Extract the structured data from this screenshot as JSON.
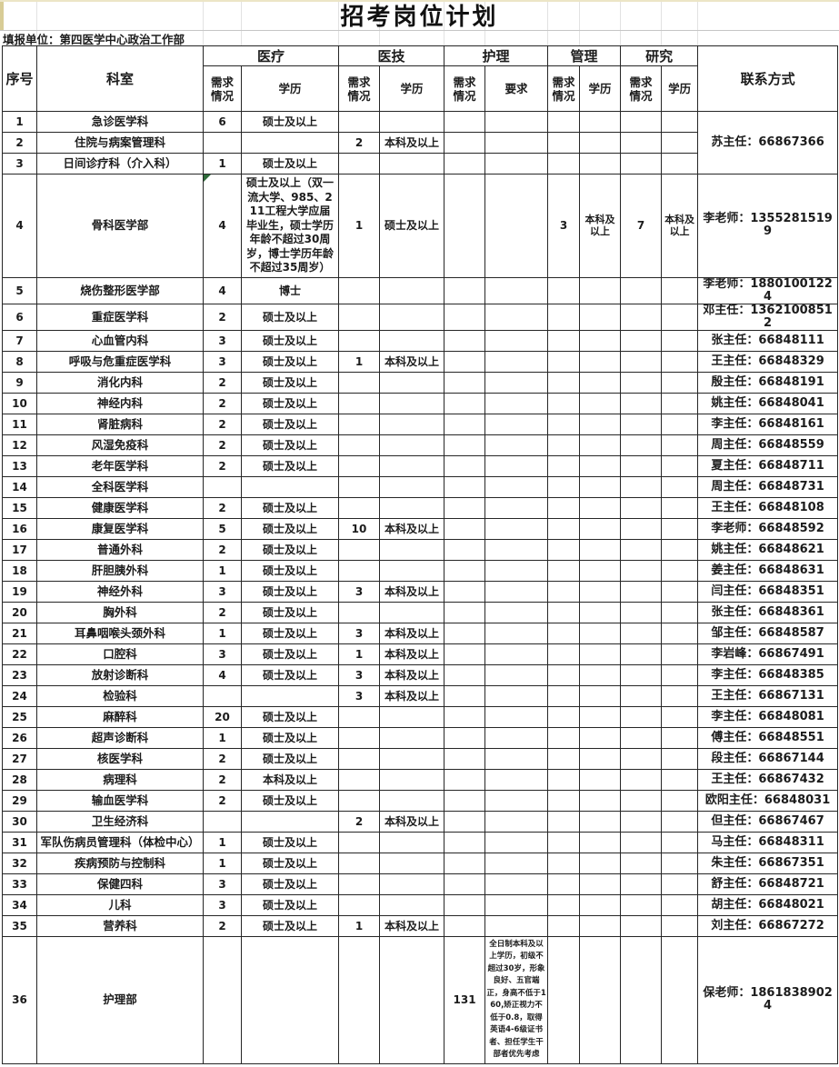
{
  "title": "招考岗位计划",
  "reporting_unit": "填报单位：第四医学中心政治工作部",
  "colors": {
    "comment_marker_green": "#2e6b3a",
    "grid_border": "#262626",
    "scan_edge_yellow": "#d8cc96"
  },
  "table": {
    "headers": {
      "seq": "序号",
      "department": "科室",
      "contact": "联系方式",
      "groups": [
        {
          "label": "医疗",
          "sub": [
            "需求\n情况",
            "学历"
          ]
        },
        {
          "label": "医技",
          "sub": [
            "需求\n情况",
            "学历"
          ]
        },
        {
          "label": "护理",
          "sub": [
            "需求\n情况",
            "要求"
          ]
        },
        {
          "label": "管理",
          "sub": [
            "需求\n情况",
            "学历"
          ]
        },
        {
          "label": "研究",
          "sub": [
            "需求\n情况",
            "学历"
          ]
        }
      ]
    },
    "rows": [
      {
        "seq": "1",
        "department": "急诊医学科",
        "yl_n": "6",
        "yl_e": "硕士及以上",
        "contact": "苏主任：66867366",
        "contact_rowspan": 3
      },
      {
        "seq": "2",
        "department": "住院与病案管理科",
        "jj_n": "2",
        "jj_e": "本科及以上",
        "contact": null
      },
      {
        "seq": "3",
        "department": "日间诊疗科（介入科）",
        "yl_n": "1",
        "yl_e": "硕士及以上",
        "contact": null
      },
      {
        "seq": "4",
        "department": "骨科医学部",
        "yl_n": "4",
        "yl_e": "硕士及以上（双一流大学、985、211工程大学应届毕业生，硕士学历年龄不超过30周岁，博士学历年龄不超过35周岁）",
        "jj_n": "1",
        "jj_e": "硕士及以上",
        "gl_n": "3",
        "gl_e": "本科及以上",
        "yj_n": "7",
        "yj_e": "本科及以上",
        "contact": "李老师：13552815199",
        "note_marker": "yl_n"
      },
      {
        "seq": "5",
        "department": "烧伤整形医学部",
        "yl_n": "4",
        "yl_e": "博士",
        "contact": "李老师：18801001224"
      },
      {
        "seq": "6",
        "department": "重症医学科",
        "yl_n": "2",
        "yl_e": "硕士及以上",
        "contact": "邓主任：13621008512"
      },
      {
        "seq": "7",
        "department": "心血管内科",
        "yl_n": "3",
        "yl_e": "硕士及以上",
        "contact": "张主任：66848111"
      },
      {
        "seq": "8",
        "department": "呼吸与危重症医学科",
        "yl_n": "3",
        "yl_e": "硕士及以上",
        "jj_n": "1",
        "jj_e": "本科及以上",
        "contact": "王主任：66848329"
      },
      {
        "seq": "9",
        "department": "消化内科",
        "yl_n": "2",
        "yl_e": "硕士及以上",
        "contact": "殷主任：66848191"
      },
      {
        "seq": "10",
        "department": "神经内科",
        "yl_n": "2",
        "yl_e": "硕士及以上",
        "contact": "姚主任：66848041"
      },
      {
        "seq": "11",
        "department": "肾脏病科",
        "yl_n": "2",
        "yl_e": "硕士及以上",
        "contact": "李主任：66848161"
      },
      {
        "seq": "12",
        "department": "风湿免疫科",
        "yl_n": "2",
        "yl_e": "硕士及以上",
        "contact": "周主任：66848559"
      },
      {
        "seq": "13",
        "department": "老年医学科",
        "yl_n": "2",
        "yl_e": "硕士及以上",
        "contact": "夏主任：66848711"
      },
      {
        "seq": "14",
        "department": "全科医学科",
        "contact": "周主任：66848731"
      },
      {
        "seq": "15",
        "department": "健康医学科",
        "yl_n": "2",
        "yl_e": "硕士及以上",
        "contact": "王主任：66848108"
      },
      {
        "seq": "16",
        "department": "康复医学科",
        "yl_n": "5",
        "yl_e": "硕士及以上",
        "jj_n": "10",
        "jj_e": "本科及以上",
        "contact": "李老师：66848592"
      },
      {
        "seq": "17",
        "department": "普通外科",
        "yl_n": "2",
        "yl_e": "硕士及以上",
        "contact": "姚主任：66848621"
      },
      {
        "seq": "18",
        "department": "肝胆胰外科",
        "yl_n": "1",
        "yl_e": "硕士及以上",
        "contact": "姜主任：66848631"
      },
      {
        "seq": "19",
        "department": "神经外科",
        "yl_n": "3",
        "yl_e": "硕士及以上",
        "jj_n": "3",
        "jj_e": "本科及以上",
        "contact": "闫主任：66848351"
      },
      {
        "seq": "20",
        "department": "胸外科",
        "yl_n": "2",
        "yl_e": "硕士及以上",
        "contact": "张主任：66848361"
      },
      {
        "seq": "21",
        "department": "耳鼻咽喉头颈外科",
        "yl_n": "1",
        "yl_e": "硕士及以上",
        "jj_n": "3",
        "jj_e": "本科及以上",
        "contact": "邹主任：66848587"
      },
      {
        "seq": "22",
        "department": "口腔科",
        "yl_n": "3",
        "yl_e": "硕士及以上",
        "jj_n": "1",
        "jj_e": "本科及以上",
        "contact": "李岩峰：66867491"
      },
      {
        "seq": "23",
        "department": "放射诊断科",
        "yl_n": "4",
        "yl_e": "硕士及以上",
        "jj_n": "3",
        "jj_e": "本科及以上",
        "contact": "李主任：66848385"
      },
      {
        "seq": "24",
        "department": "检验科",
        "jj_n": "3",
        "jj_e": "本科及以上",
        "contact": "王主任：66867131"
      },
      {
        "seq": "25",
        "department": "麻醉科",
        "yl_n": "20",
        "yl_e": "硕士及以上",
        "contact": "李主任：66848081"
      },
      {
        "seq": "26",
        "department": "超声诊断科",
        "yl_n": "1",
        "yl_e": "硕士及以上",
        "contact": "傅主任：66848551"
      },
      {
        "seq": "27",
        "department": "核医学科",
        "yl_n": "2",
        "yl_e": "硕士及以上",
        "contact": "段主任：66867144"
      },
      {
        "seq": "28",
        "department": "病理科",
        "yl_n": "2",
        "yl_e": "本科及以上",
        "contact": "王主任：66867432"
      },
      {
        "seq": "29",
        "department": "输血医学科",
        "yl_n": "2",
        "yl_e": "硕士及以上",
        "contact": "欧阳主任：66848031"
      },
      {
        "seq": "30",
        "department": "卫生经济科",
        "jj_n": "2",
        "jj_e": "本科及以上",
        "contact": "但主任：66867467"
      },
      {
        "seq": "31",
        "department": "军队伤病员管理科（体检中心）",
        "yl_n": "1",
        "yl_e": "硕士及以上",
        "contact": "马主任：66848311"
      },
      {
        "seq": "32",
        "department": "疾病预防与控制科",
        "yl_n": "1",
        "yl_e": "硕士及以上",
        "contact": "朱主任：66867351"
      },
      {
        "seq": "33",
        "department": "保健四科",
        "yl_n": "3",
        "yl_e": "硕士及以上",
        "contact": "舒主任：66848721"
      },
      {
        "seq": "34",
        "department": "儿科",
        "yl_n": "3",
        "yl_e": "硕士及以上",
        "contact": "胡主任：66848021"
      },
      {
        "seq": "35",
        "department": "营养科",
        "yl_n": "2",
        "yl_e": "硕士及以上",
        "jj_n": "1",
        "jj_e": "本科及以上",
        "contact": "刘主任：66867272"
      },
      {
        "seq": "36",
        "department": "护理部",
        "hl_n": "131",
        "hl_e": "全日制本科及以上学历，初级不超过30岁，形象良好、五官端正，身高不低于160,矫正视力不低于0.8，取得英语4-6级证书者、担任学生干部者优先考虑",
        "contact": "保老师：18618389024"
      }
    ]
  }
}
